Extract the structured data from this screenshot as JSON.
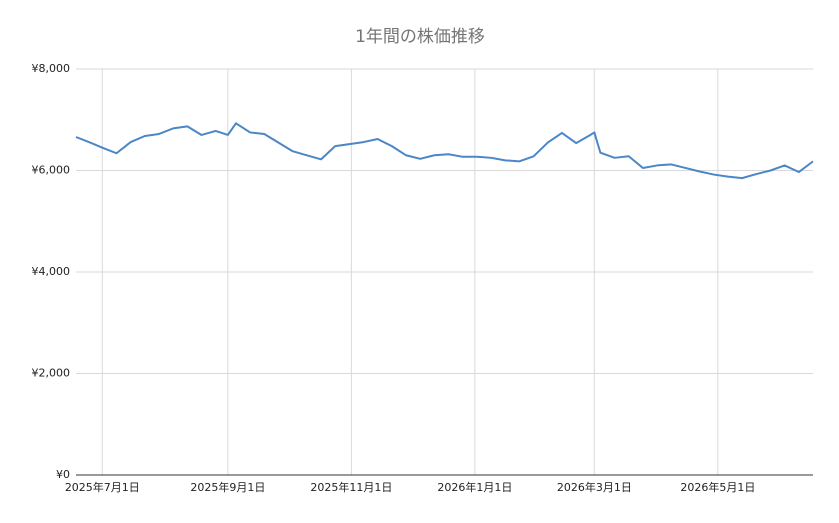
{
  "chart_data": {
    "type": "line",
    "title": "1年間の株価推移",
    "x": [
      "2025-06-18",
      "2025-06-25",
      "2025-07-01",
      "2025-07-08",
      "2025-07-15",
      "2025-07-22",
      "2025-07-29",
      "2025-08-05",
      "2025-08-12",
      "2025-08-19",
      "2025-08-26",
      "2025-09-01",
      "2025-09-05",
      "2025-09-12",
      "2025-09-19",
      "2025-09-26",
      "2025-10-03",
      "2025-10-10",
      "2025-10-17",
      "2025-10-24",
      "2025-10-31",
      "2025-11-07",
      "2025-11-14",
      "2025-11-21",
      "2025-11-28",
      "2025-12-05",
      "2025-12-12",
      "2025-12-19",
      "2025-12-26",
      "2026-01-02",
      "2026-01-09",
      "2026-01-16",
      "2026-01-23",
      "2026-01-30",
      "2026-02-06",
      "2026-02-13",
      "2026-02-20",
      "2026-02-27",
      "2026-03-01",
      "2026-03-04",
      "2026-03-11",
      "2026-03-18",
      "2026-03-25",
      "2026-04-01",
      "2026-04-08",
      "2026-04-15",
      "2026-04-22",
      "2026-04-29",
      "2026-05-06",
      "2026-05-13",
      "2026-05-20",
      "2026-05-27",
      "2026-06-03",
      "2026-06-10",
      "2026-06-17"
    ],
    "series": [
      {
        "color": "#4a86c8",
        "values": [
          6660,
          6550,
          6450,
          6340,
          6560,
          6680,
          6720,
          6830,
          6870,
          6700,
          6780,
          6700,
          6930,
          6750,
          6720,
          6550,
          6380,
          6300,
          6220,
          6480,
          6520,
          6560,
          6620,
          6480,
          6300,
          6230,
          6300,
          6320,
          6270,
          6270,
          6250,
          6200,
          6180,
          6280,
          6550,
          6740,
          6540,
          6700,
          6750,
          6350,
          6250,
          6280,
          6050,
          6100,
          6120,
          6050,
          5980,
          5920,
          5880,
          5850,
          5930,
          6000,
          6100,
          5970,
          6180
        ]
      }
    ],
    "xlim": [
      "2025-06-18",
      "2026-06-17"
    ],
    "xticks": [
      {
        "value": "2025-07-01",
        "label": "2025年7月1日"
      },
      {
        "value": "2025-09-01",
        "label": "2025年9月1日"
      },
      {
        "value": "2025-11-01",
        "label": "2025年11月1日"
      },
      {
        "value": "2026-01-01",
        "label": "2026年1月1日"
      },
      {
        "value": "2026-03-01",
        "label": "2026年3月1日"
      },
      {
        "value": "2026-05-01",
        "label": "2026年5月1日"
      }
    ],
    "ylim": [
      0,
      8000
    ],
    "yticks": [
      {
        "value": 0,
        "label": "¥0"
      },
      {
        "value": 2000,
        "label": "¥2,000"
      },
      {
        "value": 4000,
        "label": "¥4,000"
      },
      {
        "value": 6000,
        "label": "¥6,000"
      },
      {
        "value": 8000,
        "label": "¥8,000"
      }
    ],
    "grid": true
  }
}
